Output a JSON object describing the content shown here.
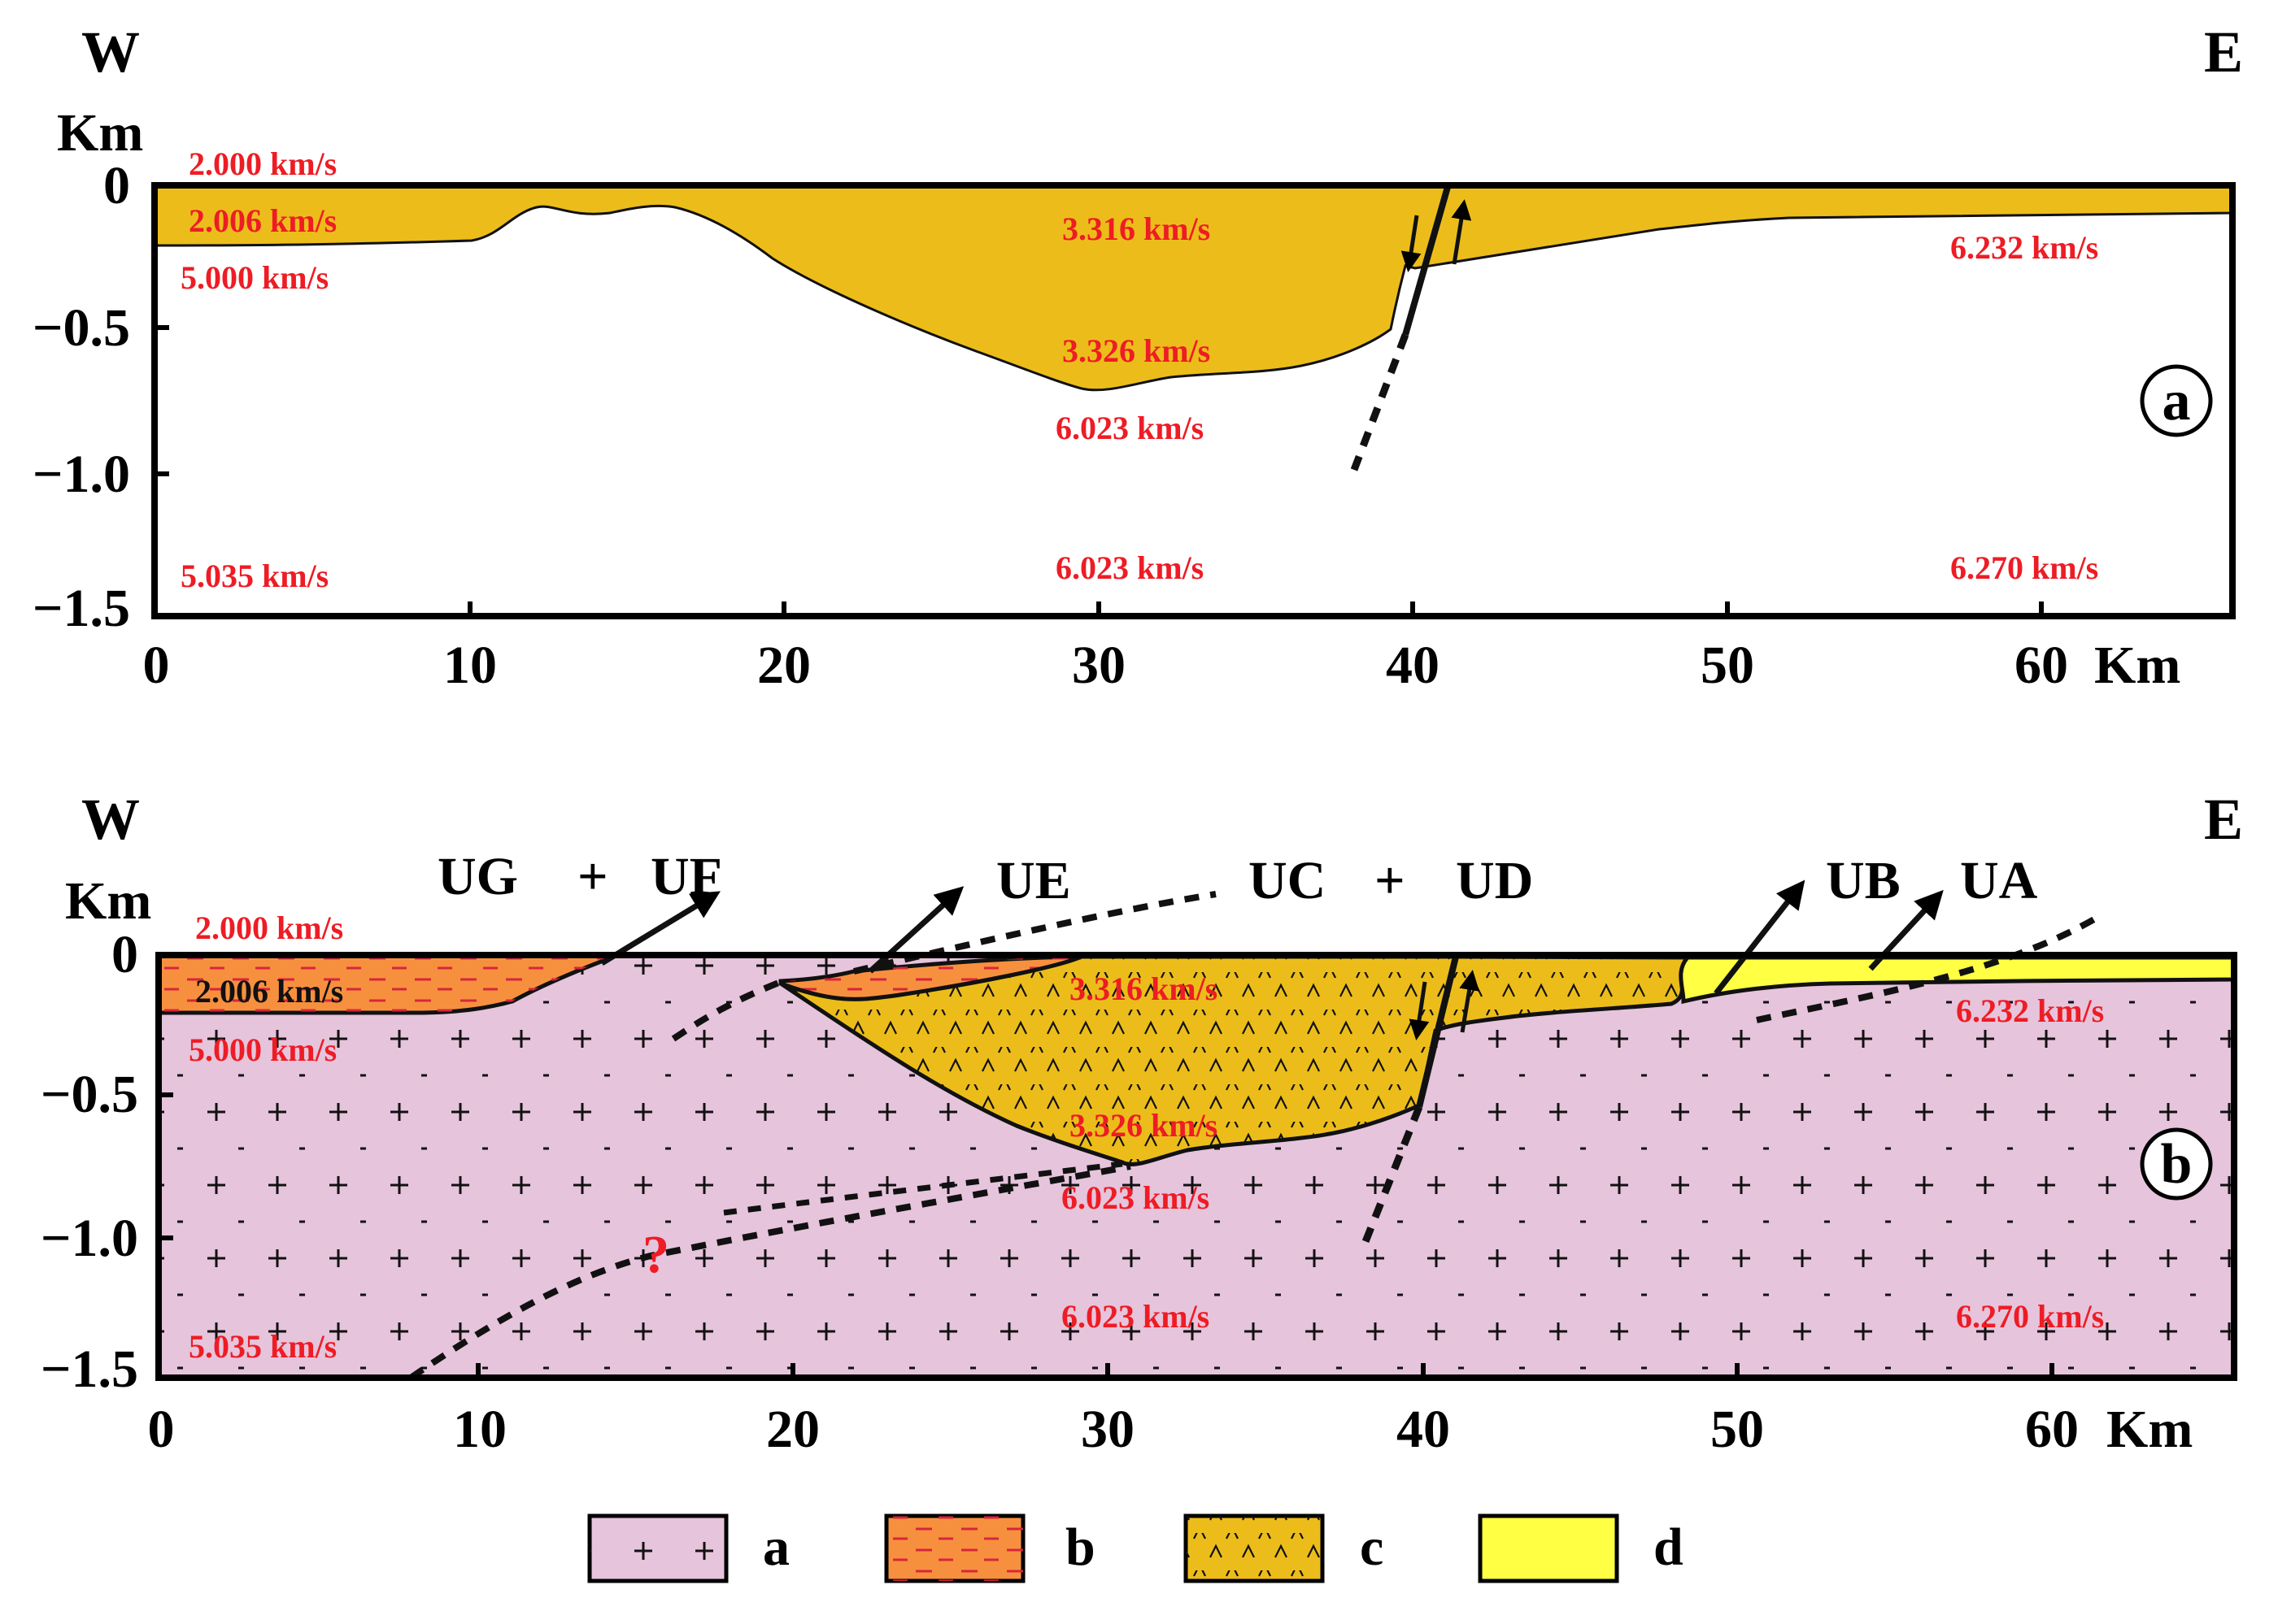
{
  "orientation": {
    "west": "W",
    "east": "E"
  },
  "colors": {
    "unit_a": "#e6c4dc",
    "unit_b": "#f7903e",
    "unit_c": "#ecbd1a",
    "unit_d": "#ffff44",
    "velocity_text": "#ee1c24"
  },
  "panel_a": {
    "label": "a",
    "y_unit": "Km",
    "x_unit": "Km",
    "y_ticks": [
      "0",
      "−0.5",
      "−1.0",
      "−1.5"
    ],
    "x_ticks": [
      "0",
      "10",
      "20",
      "30",
      "40",
      "50",
      "60"
    ],
    "velocities": [
      "2.000 km/s",
      "2.006 km/s",
      "5.000 km/s",
      "3.316 km/s",
      "3.326 km/s",
      "6.023 km/s",
      "6.232 km/s",
      "5.035 km/s",
      "6.023 km/s",
      "6.270 km/s"
    ]
  },
  "panel_b": {
    "label": "b",
    "y_unit": "Km",
    "x_unit": "Km",
    "y_ticks": [
      "0",
      "−0.5",
      "−1.0",
      "−1.5"
    ],
    "x_ticks": [
      "0",
      "10",
      "20",
      "30",
      "40",
      "50",
      "60"
    ],
    "unit_labels": {
      "ug": "UG",
      "plus1": "+",
      "uf": "UF",
      "ue": "UE",
      "uc": "UC",
      "plus2": "+",
      "ud": "UD",
      "ub": "UB",
      "ua": "UA"
    },
    "question_mark": "?",
    "velocities": [
      "2.000 km/s",
      "2.006 km/s",
      "5.000 km/s",
      "3.316 km/s",
      "3.326 km/s",
      "6.023 km/s",
      "6.232 km/s",
      "5.035 km/s",
      "6.023 km/s",
      "6.270 km/s"
    ]
  },
  "legend": [
    {
      "key": "a",
      "fill": "unit_a"
    },
    {
      "key": "b",
      "fill": "unit_b"
    },
    {
      "key": "c",
      "fill": "unit_c"
    },
    {
      "key": "d",
      "fill": "unit_d"
    }
  ]
}
